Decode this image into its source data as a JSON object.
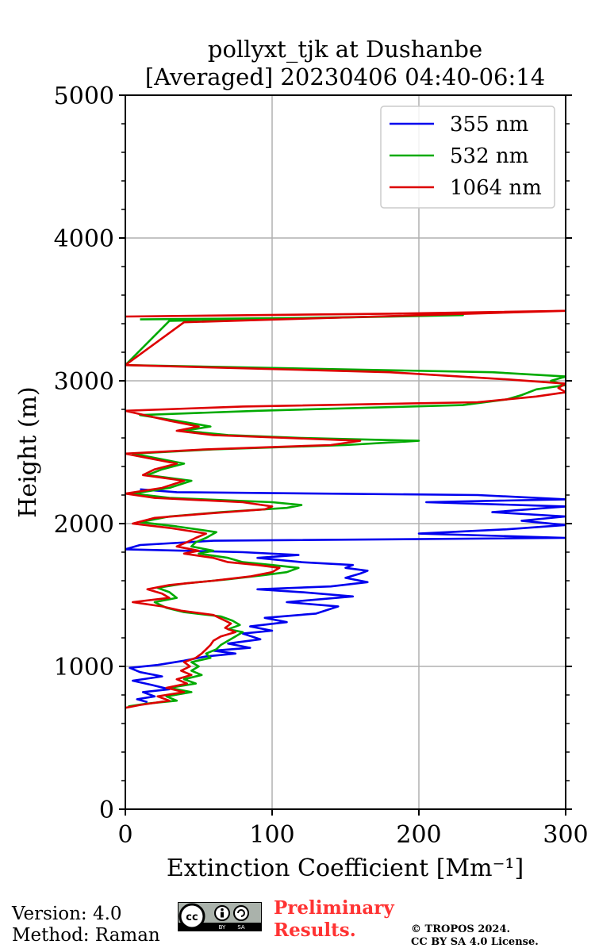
{
  "chart_data": {
    "type": "line",
    "title_line1": "pollyxt_tjk at Dushanbe",
    "title_line2": "[Averaged] 20230406 04:40-06:14",
    "xlabel": "Extinction Coefficient [Mm⁻¹]",
    "ylabel": "Height (m)",
    "xlim": [
      0,
      300
    ],
    "ylim": [
      0,
      5000
    ],
    "xticks": [
      0,
      100,
      200,
      300
    ],
    "xtick_labels": [
      "0",
      "100",
      "200",
      "300"
    ],
    "yticks": [
      0,
      1000,
      2000,
      3000,
      4000,
      5000
    ],
    "ytick_labels": [
      "0",
      "1000",
      "2000",
      "3000",
      "4000",
      "5000"
    ],
    "grid": true,
    "legend_position": "top-right",
    "series": [
      {
        "name": "355 nm",
        "color": "#0000ee",
        "points": [
          [
            15,
            750
          ],
          [
            8,
            770
          ],
          [
            20,
            790
          ],
          [
            12,
            820
          ],
          [
            30,
            840
          ],
          [
            18,
            870
          ],
          [
            5,
            900
          ],
          [
            25,
            930
          ],
          [
            10,
            960
          ],
          [
            3,
            990
          ],
          [
            22,
            1010
          ],
          [
            40,
            1040
          ],
          [
            55,
            1070
          ],
          [
            75,
            1090
          ],
          [
            60,
            1110
          ],
          [
            85,
            1130
          ],
          [
            70,
            1160
          ],
          [
            92,
            1190
          ],
          [
            80,
            1230
          ],
          [
            100,
            1250
          ],
          [
            85,
            1280
          ],
          [
            110,
            1310
          ],
          [
            95,
            1340
          ],
          [
            130,
            1370
          ],
          [
            145,
            1420
          ],
          [
            110,
            1450
          ],
          [
            155,
            1490
          ],
          [
            120,
            1520
          ],
          [
            90,
            1540
          ],
          [
            140,
            1560
          ],
          [
            165,
            1590
          ],
          [
            150,
            1620
          ],
          [
            160,
            1650
          ],
          [
            165,
            1670
          ],
          [
            150,
            1690
          ],
          [
            155,
            1710
          ],
          [
            120,
            1730
          ],
          [
            90,
            1760
          ],
          [
            118,
            1780
          ],
          [
            80,
            1800
          ],
          [
            40,
            1810
          ],
          [
            0,
            1820
          ],
          [
            10,
            1850
          ],
          [
            60,
            1880
          ],
          [
            300,
            1900
          ],
          [
            200,
            1930
          ],
          [
            260,
            1960
          ],
          [
            300,
            1990
          ],
          [
            270,
            2020
          ],
          [
            300,
            2050
          ],
          [
            250,
            2080
          ],
          [
            300,
            2120
          ],
          [
            205,
            2150
          ],
          [
            300,
            2170
          ],
          [
            240,
            2200
          ],
          [
            35,
            2220
          ],
          [
            10,
            2240
          ]
        ]
      },
      {
        "name": "532 nm",
        "color": "#00aa00",
        "points": [
          [
            2,
            720
          ],
          [
            15,
            740
          ],
          [
            35,
            760
          ],
          [
            28,
            790
          ],
          [
            45,
            820
          ],
          [
            30,
            850
          ],
          [
            48,
            880
          ],
          [
            40,
            910
          ],
          [
            52,
            940
          ],
          [
            45,
            970
          ],
          [
            50,
            1000
          ],
          [
            45,
            1030
          ],
          [
            58,
            1060
          ],
          [
            55,
            1090
          ],
          [
            62,
            1120
          ],
          [
            65,
            1150
          ],
          [
            70,
            1180
          ],
          [
            75,
            1210
          ],
          [
            80,
            1240
          ],
          [
            70,
            1260
          ],
          [
            78,
            1290
          ],
          [
            73,
            1320
          ],
          [
            65,
            1350
          ],
          [
            40,
            1380
          ],
          [
            28,
            1410
          ],
          [
            20,
            1450
          ],
          [
            35,
            1480
          ],
          [
            30,
            1520
          ],
          [
            22,
            1550
          ],
          [
            40,
            1580
          ],
          [
            70,
            1610
          ],
          [
            95,
            1640
          ],
          [
            110,
            1660
          ],
          [
            118,
            1690
          ],
          [
            100,
            1710
          ],
          [
            80,
            1730
          ],
          [
            70,
            1760
          ],
          [
            50,
            1790
          ],
          [
            60,
            1810
          ],
          [
            45,
            1840
          ],
          [
            48,
            1870
          ],
          [
            55,
            1900
          ],
          [
            62,
            1940
          ],
          [
            35,
            1980
          ],
          [
            10,
            2010
          ],
          [
            30,
            2050
          ],
          [
            65,
            2080
          ],
          [
            110,
            2110
          ],
          [
            120,
            2130
          ],
          [
            100,
            2150
          ],
          [
            30,
            2180
          ],
          [
            5,
            2210
          ],
          [
            30,
            2250
          ],
          [
            45,
            2300
          ],
          [
            15,
            2340
          ],
          [
            25,
            2380
          ],
          [
            40,
            2420
          ],
          [
            20,
            2460
          ],
          [
            5,
            2490
          ],
          [
            60,
            2520
          ],
          [
            150,
            2550
          ],
          [
            200,
            2580
          ],
          [
            120,
            2600
          ],
          [
            70,
            2620
          ],
          [
            40,
            2650
          ],
          [
            58,
            2680
          ],
          [
            35,
            2720
          ],
          [
            10,
            2760
          ],
          [
            90,
            2790
          ],
          [
            230,
            2830
          ],
          [
            260,
            2870
          ],
          [
            270,
            2900
          ],
          [
            280,
            2940
          ],
          [
            300,
            2970
          ],
          [
            290,
            3000
          ],
          [
            300,
            3030
          ],
          [
            250,
            3060
          ],
          [
            0,
            3110
          ],
          [
            30,
            3420
          ],
          [
            230,
            3460
          ],
          [
            120,
            3440
          ],
          [
            10,
            3430
          ]
        ]
      },
      {
        "name": "1064 nm",
        "color": "#dd0000",
        "points": [
          [
            0,
            710
          ],
          [
            10,
            730
          ],
          [
            30,
            760
          ],
          [
            22,
            790
          ],
          [
            40,
            820
          ],
          [
            28,
            850
          ],
          [
            42,
            880
          ],
          [
            35,
            910
          ],
          [
            45,
            940
          ],
          [
            38,
            970
          ],
          [
            44,
            1000
          ],
          [
            40,
            1030
          ],
          [
            48,
            1060
          ],
          [
            52,
            1090
          ],
          [
            55,
            1120
          ],
          [
            58,
            1150
          ],
          [
            60,
            1180
          ],
          [
            65,
            1210
          ],
          [
            75,
            1240
          ],
          [
            68,
            1270
          ],
          [
            72,
            1300
          ],
          [
            66,
            1330
          ],
          [
            60,
            1360
          ],
          [
            38,
            1390
          ],
          [
            25,
            1420
          ],
          [
            5,
            1450
          ],
          [
            30,
            1480
          ],
          [
            25,
            1510
          ],
          [
            15,
            1540
          ],
          [
            30,
            1570
          ],
          [
            60,
            1600
          ],
          [
            85,
            1630
          ],
          [
            100,
            1660
          ],
          [
            105,
            1690
          ],
          [
            90,
            1710
          ],
          [
            70,
            1730
          ],
          [
            60,
            1760
          ],
          [
            40,
            1790
          ],
          [
            50,
            1810
          ],
          [
            35,
            1840
          ],
          [
            42,
            1870
          ],
          [
            48,
            1900
          ],
          [
            55,
            1930
          ],
          [
            30,
            1970
          ],
          [
            5,
            2000
          ],
          [
            20,
            2040
          ],
          [
            55,
            2070
          ],
          [
            95,
            2100
          ],
          [
            100,
            2120
          ],
          [
            80,
            2150
          ],
          [
            20,
            2180
          ],
          [
            0,
            2210
          ],
          [
            25,
            2250
          ],
          [
            40,
            2300
          ],
          [
            12,
            2340
          ],
          [
            20,
            2380
          ],
          [
            35,
            2420
          ],
          [
            15,
            2460
          ],
          [
            0,
            2490
          ],
          [
            55,
            2520
          ],
          [
            140,
            2550
          ],
          [
            160,
            2580
          ],
          [
            110,
            2600
          ],
          [
            60,
            2620
          ],
          [
            35,
            2650
          ],
          [
            50,
            2680
          ],
          [
            30,
            2720
          ],
          [
            0,
            2790
          ],
          [
            80,
            2820
          ],
          [
            240,
            2850
          ],
          [
            280,
            2890
          ],
          [
            300,
            2920
          ],
          [
            295,
            2950
          ],
          [
            300,
            2980
          ],
          [
            260,
            3010
          ],
          [
            180,
            3060
          ],
          [
            0,
            3110
          ],
          [
            40,
            3410
          ],
          [
            300,
            3490
          ],
          [
            180,
            3470
          ],
          [
            0,
            3450
          ]
        ]
      }
    ]
  },
  "footer": {
    "version_line": "Version: 4.0",
    "method_line": "Method: Raman",
    "preliminary_line1": "Preliminary",
    "preliminary_line2": "Results.",
    "copyright_line1": "© TROPOS 2024.",
    "copyright_line2": "CC BY SA 4.0 License.",
    "cc_badge": {
      "cc": "cc",
      "by": "BY",
      "sa": "SA"
    }
  }
}
